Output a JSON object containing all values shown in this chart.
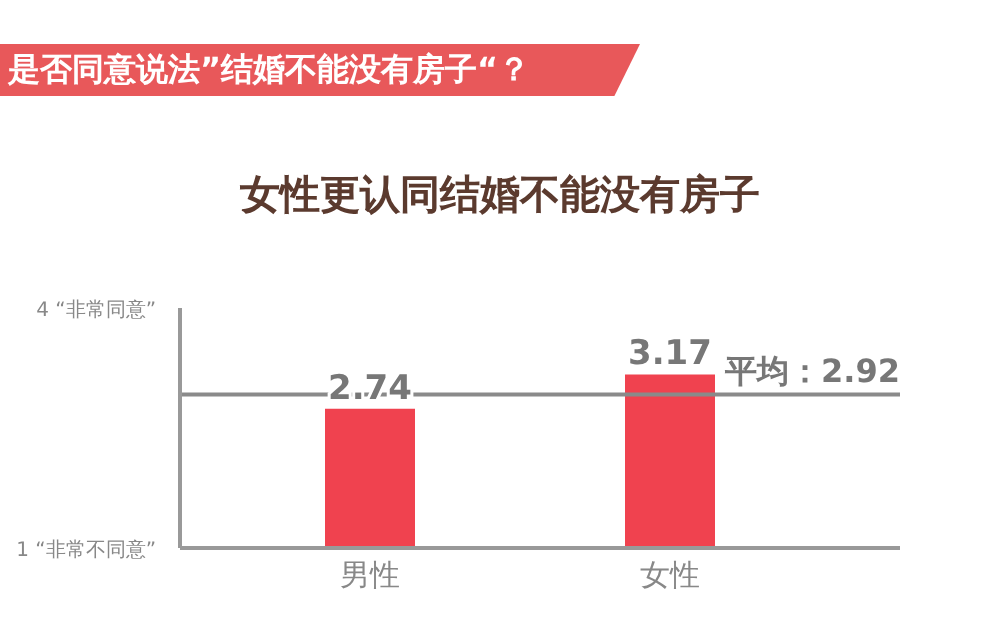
{
  "chart_data": {
    "type": "bar",
    "title": "女性更认同结婚不能没有房子",
    "subtitle": "是否同意说法”结婚不能没有房子“？",
    "categories": [
      "男性",
      "女性"
    ],
    "values": [
      2.74,
      3.17
    ],
    "color": "#f0424f",
    "data_labels": true,
    "ylim": [
      1,
      4
    ],
    "yticks": [
      {
        "value": 1,
        "label": "1 “非常不同意”"
      },
      {
        "value": 4,
        "label": "4 “非常同意”"
      }
    ],
    "ref_lines": [
      {
        "axis": "y",
        "value": 2.92,
        "label": "平均：2.92",
        "color": "#8a8a8a"
      }
    ],
    "grid": false,
    "legend": false
  }
}
